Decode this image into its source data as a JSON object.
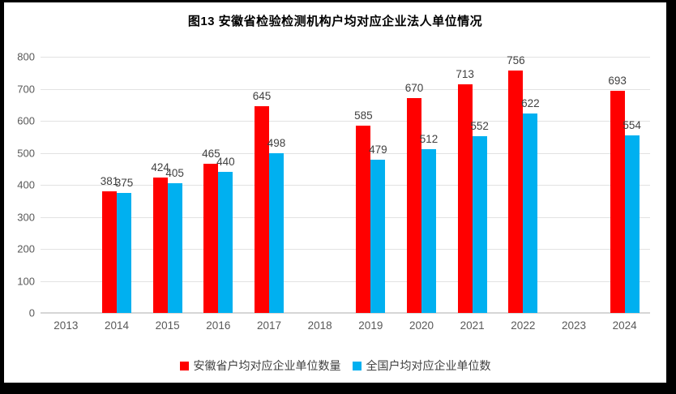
{
  "chart_data": {
    "type": "bar",
    "title": "图13 安徽省检验检测机构户均对应企业法人单位情况",
    "categories": [
      "2013",
      "2014",
      "2015",
      "2016",
      "2017",
      "2018",
      "2019",
      "2020",
      "2021",
      "2022",
      "2023",
      "2024"
    ],
    "series": [
      {
        "name": "安徽省户均对应企业单位数量",
        "color": "#ff0000",
        "values": [
          null,
          381,
          424,
          465,
          645,
          null,
          585,
          670,
          713,
          756,
          null,
          693
        ]
      },
      {
        "name": "全国户均对应企业单位数",
        "color": "#00b0f0",
        "values": [
          null,
          375,
          405,
          440,
          498,
          null,
          479,
          512,
          552,
          622,
          null,
          554
        ]
      }
    ],
    "ylim": [
      0,
      800
    ],
    "ytick_step": 100,
    "grid": true,
    "legend_position": "bottom",
    "colors": {
      "gridline": "#e2e2e2",
      "axis_label": "#595959",
      "data_label": "#404040",
      "frame": "#000000",
      "background": "#ffffff"
    }
  }
}
